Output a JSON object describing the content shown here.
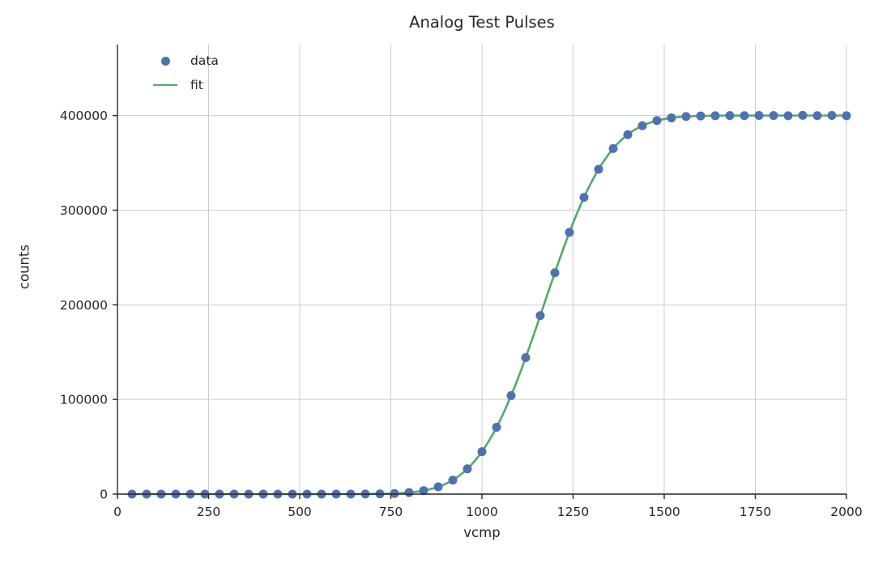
{
  "chart_data": {
    "type": "scatter",
    "title": "Analog Test Pulses",
    "xlabel": "vcmp",
    "ylabel": "counts",
    "xlim": [
      0,
      2000
    ],
    "ylim": [
      0,
      475000
    ],
    "x_ticks": [
      0,
      250,
      500,
      750,
      1000,
      1250,
      1500,
      1750,
      2000
    ],
    "y_ticks": [
      0,
      100000,
      200000,
      300000,
      400000
    ],
    "grid": true,
    "legend_position": "upper left",
    "colors": {
      "grid": "#cccccc",
      "spine": "#262626",
      "text": "#262626"
    },
    "series": [
      {
        "name": "data",
        "type": "scatter",
        "color": "#4c72b0",
        "marker": "circle",
        "x": [
          40,
          80,
          120,
          160,
          200,
          240,
          280,
          320,
          360,
          400,
          440,
          480,
          520,
          560,
          600,
          640,
          680,
          720,
          760,
          800,
          840,
          880,
          920,
          960,
          1000,
          1040,
          1080,
          1120,
          1160,
          1200,
          1240,
          1280,
          1320,
          1360,
          1400,
          1440,
          1480,
          1520,
          1560,
          1600,
          1640,
          1680,
          1720,
          1760,
          1800,
          1840,
          1880,
          1920,
          1960,
          2000
        ],
        "y": [
          0,
          0,
          0,
          0,
          0,
          0,
          0,
          0,
          0,
          0,
          0,
          0,
          0,
          0,
          10,
          30,
          90,
          260,
          670,
          1630,
          3690,
          7670,
          14800,
          26700,
          44800,
          70600,
          104100,
          144200,
          188600,
          233900,
          276600,
          313600,
          343200,
          365100,
          379800,
          389200,
          394700,
          397500,
          398900,
          399600,
          399800,
          400000,
          399900,
          400100,
          400000,
          399800,
          400200,
          399900,
          400100,
          399800
        ]
      },
      {
        "name": "fit",
        "type": "line",
        "color": "#55a868",
        "model": "erf_sigmoid",
        "params": {
          "amplitude": 400000,
          "mu": 1170,
          "width": 198
        },
        "x_range": [
          40,
          2000
        ]
      }
    ]
  }
}
